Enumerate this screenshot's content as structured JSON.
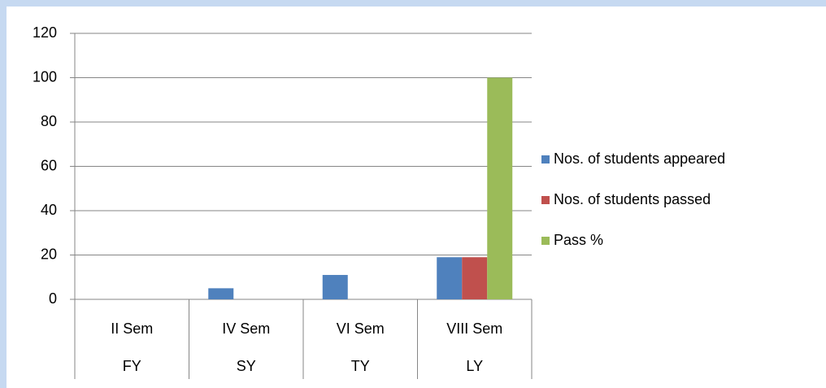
{
  "chart_data": {
    "type": "bar",
    "categories": [
      "II Sem",
      "IV Sem",
      "VI Sem",
      "VIII Sem"
    ],
    "category_groups": [
      "FY",
      "SY",
      "TY",
      "LY"
    ],
    "series": [
      {
        "name": "Nos. of students appeared",
        "color": "#4f81bd",
        "values": [
          0,
          5,
          11,
          19
        ]
      },
      {
        "name": "Nos. of students passed",
        "color": "#c0504d",
        "values": [
          0,
          0,
          0,
          19
        ]
      },
      {
        "name": "Pass %",
        "color": "#9bbb59",
        "values": [
          0,
          0,
          0,
          100
        ]
      }
    ],
    "ylim": [
      0,
      120
    ],
    "yticks": [
      0,
      20,
      40,
      60,
      80,
      100,
      120
    ],
    "grid": true,
    "legend": "right"
  }
}
